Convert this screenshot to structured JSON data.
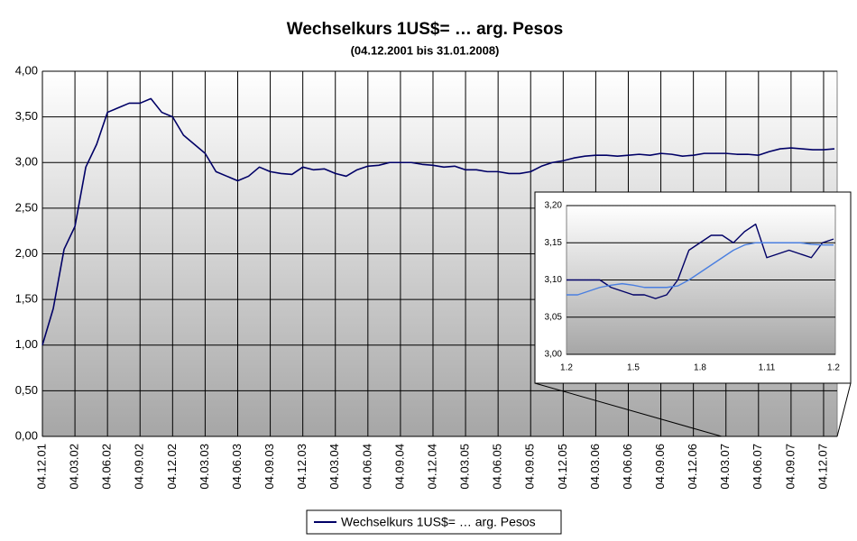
{
  "chart_data": [
    {
      "type": "line",
      "title": "Wechselkurs 1US$= … arg. Pesos",
      "subtitle": "(04.12.2001 bis 31.01.2008)",
      "categories": [
        "04.12.01",
        null,
        null,
        "04.03.02",
        null,
        null,
        "04.06.02",
        null,
        null,
        "04.09.02",
        null,
        null,
        "04.12.02",
        null,
        null,
        "04.03.03",
        null,
        null,
        "04.06.03",
        null,
        null,
        "04.09.03",
        null,
        null,
        "04.12.03",
        null,
        null,
        "04.03.04",
        null,
        null,
        "04.06.04",
        null,
        null,
        "04.09.04",
        null,
        null,
        "04.12.04",
        null,
        null,
        "04.03.05",
        null,
        null,
        "04.06.05",
        null,
        null,
        "04.09.05",
        null,
        null,
        "04.12.05",
        null,
        null,
        "04.03.06",
        null,
        null,
        "04.06.06",
        null,
        null,
        "04.09.06",
        null,
        null,
        "04.12.06",
        null,
        null,
        "04.03.07",
        null,
        null,
        "04.06.07",
        null,
        null,
        "04.09.07",
        null,
        null,
        "04.12.07",
        null
      ],
      "series": [
        {
          "name": "Wechselkurs 1US$= … arg. Pesos",
          "color": "#000066",
          "values": [
            1.0,
            1.4,
            2.05,
            2.3,
            2.95,
            3.2,
            3.55,
            3.6,
            3.65,
            3.65,
            3.7,
            3.55,
            3.5,
            3.3,
            3.2,
            3.1,
            2.9,
            2.85,
            2.8,
            2.85,
            2.95,
            2.9,
            2.88,
            2.87,
            2.95,
            2.92,
            2.93,
            2.88,
            2.85,
            2.92,
            2.96,
            2.97,
            3.0,
            3.0,
            3.0,
            2.98,
            2.97,
            2.95,
            2.96,
            2.92,
            2.92,
            2.9,
            2.9,
            2.88,
            2.88,
            2.9,
            2.96,
            3.0,
            3.02,
            3.05,
            3.07,
            3.08,
            3.08,
            3.07,
            3.08,
            3.09,
            3.08,
            3.1,
            3.09,
            3.07,
            3.08,
            3.1,
            3.1,
            3.1,
            3.09,
            3.09,
            3.08,
            3.12,
            3.15,
            3.16,
            3.15,
            3.14,
            3.14,
            3.15
          ]
        }
      ],
      "ylim": [
        0,
        4
      ],
      "yticks": [
        {
          "value": 0,
          "label": "0,00"
        },
        {
          "value": 0.5,
          "label": "0,50"
        },
        {
          "value": 1,
          "label": "1,00"
        },
        {
          "value": 1.5,
          "label": "1,50"
        },
        {
          "value": 2,
          "label": "2,00"
        },
        {
          "value": 2.5,
          "label": "2,50"
        },
        {
          "value": 3,
          "label": "3,00"
        },
        {
          "value": 3.5,
          "label": "3,50"
        },
        {
          "value": 4,
          "label": "4,00"
        }
      ],
      "grid": true,
      "legend": "bottom"
    },
    {
      "type": "line",
      "categories": [
        "1.2",
        null,
        null,
        null,
        null,
        null,
        "1.5",
        null,
        null,
        null,
        null,
        null,
        "1.8",
        null,
        null,
        null,
        null,
        null,
        "1.11",
        null,
        null,
        null,
        null,
        null,
        "1.2"
      ],
      "series": [
        {
          "color": "#000066",
          "values": [
            3.1,
            3.1,
            3.1,
            3.1,
            3.09,
            3.085,
            3.08,
            3.08,
            3.075,
            3.08,
            3.1,
            3.14,
            3.15,
            3.16,
            3.16,
            3.15,
            3.165,
            3.175,
            3.13,
            3.135,
            3.14,
            3.135,
            3.13,
            3.15,
            3.155
          ]
        },
        {
          "color": "#4a7fe0",
          "values": [
            3.08,
            3.08,
            3.085,
            3.09,
            3.093,
            3.095,
            3.093,
            3.09,
            3.09,
            3.09,
            3.092,
            3.1,
            3.11,
            3.12,
            3.13,
            3.14,
            3.147,
            3.15,
            3.15,
            3.15,
            3.15,
            3.15,
            3.148,
            3.147,
            3.147
          ]
        }
      ],
      "ylim": [
        3.0,
        3.2
      ],
      "yticks": [
        {
          "value": 3.0,
          "label": "3,00"
        },
        {
          "value": 3.05,
          "label": "3,05"
        },
        {
          "value": 3.1,
          "label": "3,10"
        },
        {
          "value": 3.15,
          "label": "3,15"
        },
        {
          "value": 3.2,
          "label": "3,20"
        }
      ],
      "grid": true
    }
  ]
}
